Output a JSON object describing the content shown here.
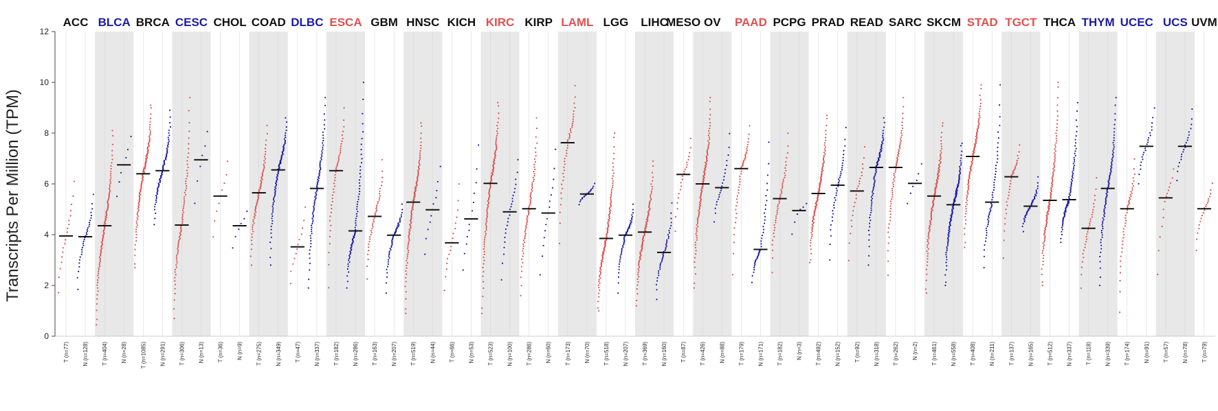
{
  "chart_data": {
    "type": "scatter",
    "ylabel": "Transcripts Per Million (TPM)",
    "ylim": [
      0,
      12
    ],
    "yticks": [
      0,
      2,
      4,
      6,
      8,
      10,
      12
    ],
    "colors": {
      "tumor": "#d9534f",
      "normal": "#1a1aa8",
      "up": "#e0504e",
      "down": "#1a1aa8",
      "neutral": "#111111",
      "median": "#111111",
      "band": "#e8e8e8"
    },
    "cancers": [
      {
        "name": "ACC",
        "status": "neutral",
        "groups": [
          {
            "label": "T (n=77)",
            "type": "tumor",
            "median": 3.95,
            "min": 1.3,
            "max": 6.5
          },
          {
            "label": "N (n=128)",
            "type": "normal",
            "median": 3.92,
            "min": 1.7,
            "max": 5.7
          }
        ]
      },
      {
        "name": "BLCA",
        "status": "down",
        "groups": [
          {
            "label": "T (n=404)",
            "type": "tumor",
            "median": 4.35,
            "min": 0.45,
            "max": 8.1
          },
          {
            "label": "N (n=28)",
            "type": "normal",
            "median": 6.75,
            "min": 4.8,
            "max": 8.5
          }
        ]
      },
      {
        "name": "BRCA",
        "status": "neutral",
        "groups": [
          {
            "label": "T (n=1085)",
            "type": "tumor",
            "median": 6.4,
            "min": 2.7,
            "max": 9.1
          },
          {
            "label": "N (n=291)",
            "type": "normal",
            "median": 6.52,
            "min": 4.4,
            "max": 8.9
          }
        ]
      },
      {
        "name": "CESC",
        "status": "down",
        "groups": [
          {
            "label": "T (n=306)",
            "type": "tumor",
            "median": 4.38,
            "min": 0.7,
            "max": 9.4
          },
          {
            "label": "N (n=13)",
            "type": "normal",
            "median": 6.95,
            "min": 4.1,
            "max": 8.8
          }
        ]
      },
      {
        "name": "CHOL",
        "status": "neutral",
        "groups": [
          {
            "label": "T (n=36)",
            "type": "tumor",
            "median": 5.52,
            "min": 3.2,
            "max": 7.5
          },
          {
            "label": "N (n=9)",
            "type": "normal",
            "median": 4.35,
            "min": 2.9,
            "max": 5.3
          }
        ]
      },
      {
        "name": "COAD",
        "status": "neutral",
        "groups": [
          {
            "label": "T (n=275)",
            "type": "tumor",
            "median": 5.65,
            "min": 2.8,
            "max": 8.3
          },
          {
            "label": "N (n=349)",
            "type": "normal",
            "median": 6.55,
            "min": 2.8,
            "max": 8.6
          }
        ]
      },
      {
        "name": "DLBC",
        "status": "down",
        "groups": [
          {
            "label": "T (n=47)",
            "type": "tumor",
            "median": 3.52,
            "min": 1.6,
            "max": 5.6
          },
          {
            "label": "N (n=337)",
            "type": "normal",
            "median": 5.82,
            "min": 1.9,
            "max": 9.4
          }
        ]
      },
      {
        "name": "ESCA",
        "status": "up",
        "groups": [
          {
            "label": "T (n=182)",
            "type": "tumor",
            "median": 6.52,
            "min": 1.9,
            "max": 9.0
          },
          {
            "label": "N (n=286)",
            "type": "normal",
            "median": 4.15,
            "min": 1.9,
            "max": 10.0
          }
        ]
      },
      {
        "name": "GBM",
        "status": "neutral",
        "groups": [
          {
            "label": "T (n=163)",
            "type": "tumor",
            "median": 4.72,
            "min": 2.2,
            "max": 7.0
          },
          {
            "label": "N (n=207)",
            "type": "normal",
            "median": 3.98,
            "min": 1.7,
            "max": 5.2
          }
        ]
      },
      {
        "name": "HNSC",
        "status": "neutral",
        "groups": [
          {
            "label": "T (n=519)",
            "type": "tumor",
            "median": 5.28,
            "min": 0.9,
            "max": 8.4
          },
          {
            "label": "N (n=44)",
            "type": "normal",
            "median": 4.98,
            "min": 2.6,
            "max": 7.3
          }
        ]
      },
      {
        "name": "KICH",
        "status": "neutral",
        "groups": [
          {
            "label": "T (n=66)",
            "type": "tumor",
            "median": 3.68,
            "min": 1.4,
            "max": 6.5
          },
          {
            "label": "N (n=53)",
            "type": "normal",
            "median": 4.62,
            "min": 2.0,
            "max": 8.4
          }
        ]
      },
      {
        "name": "KIRC",
        "status": "up",
        "groups": [
          {
            "label": "T (n=523)",
            "type": "tumor",
            "median": 6.02,
            "min": 0.9,
            "max": 9.2
          },
          {
            "label": "N (n=100)",
            "type": "normal",
            "median": 4.9,
            "min": 1.9,
            "max": 7.2
          }
        ]
      },
      {
        "name": "KIRP",
        "status": "neutral",
        "groups": [
          {
            "label": "T (n=286)",
            "type": "tumor",
            "median": 5.02,
            "min": 1.6,
            "max": 8.6
          },
          {
            "label": "N (n=60)",
            "type": "normal",
            "median": 4.85,
            "min": 1.8,
            "max": 8.0
          }
        ]
      },
      {
        "name": "LAML",
        "status": "up",
        "groups": [
          {
            "label": "T (n=173)",
            "type": "tumor",
            "median": 7.62,
            "min": 3.6,
            "max": 9.9
          },
          {
            "label": "N (n=70)",
            "type": "normal",
            "median": 5.6,
            "min": 5.1,
            "max": 6.1
          }
        ]
      },
      {
        "name": "LGG",
        "status": "neutral",
        "groups": [
          {
            "label": "T (n=518)",
            "type": "tumor",
            "median": 3.85,
            "min": 1.0,
            "max": 8.0
          },
          {
            "label": "N (n=207)",
            "type": "normal",
            "median": 3.98,
            "min": 1.7,
            "max": 5.2
          }
        ]
      },
      {
        "name": "LIHC",
        "status": "neutral",
        "groups": [
          {
            "label": "T (n=369)",
            "type": "tumor",
            "median": 4.1,
            "min": 1.2,
            "max": 6.9
          },
          {
            "label": "N (n=160)",
            "type": "normal",
            "median": 3.3,
            "min": 1.4,
            "max": 5.3
          }
        ]
      },
      {
        "name": "MESO",
        "status": "neutral",
        "groups": [
          {
            "label": "T (n=87)",
            "type": "tumor",
            "median": 6.37,
            "min": 3.8,
            "max": 8.0
          }
        ]
      },
      {
        "name": "OV",
        "status": "neutral",
        "groups": [
          {
            "label": "T (n=426)",
            "type": "tumor",
            "median": 6.0,
            "min": 1.9,
            "max": 9.4
          },
          {
            "label": "N (n=88)",
            "type": "normal",
            "median": 5.85,
            "min": 4.3,
            "max": 8.3
          }
        ]
      },
      {
        "name": "PAAD",
        "status": "up",
        "groups": [
          {
            "label": "T (n=179)",
            "type": "tumor",
            "median": 6.6,
            "min": 2.4,
            "max": 8.3
          },
          {
            "label": "N (n=171)",
            "type": "normal",
            "median": 3.42,
            "min": 2.1,
            "max": 7.7
          }
        ]
      },
      {
        "name": "PCPG",
        "status": "neutral",
        "groups": [
          {
            "label": "T (n=182)",
            "type": "tumor",
            "median": 5.42,
            "min": 2.5,
            "max": 8.0
          },
          {
            "label": "N (n=3)",
            "type": "normal",
            "median": 4.95,
            "min": 3.4,
            "max": 5.3
          }
        ]
      },
      {
        "name": "PRAD",
        "status": "neutral",
        "groups": [
          {
            "label": "T (n=492)",
            "type": "tumor",
            "median": 5.62,
            "min": 2.9,
            "max": 8.7
          },
          {
            "label": "N (n=152)",
            "type": "normal",
            "median": 5.95,
            "min": 2.9,
            "max": 8.3
          }
        ]
      },
      {
        "name": "READ",
        "status": "neutral",
        "groups": [
          {
            "label": "T (n=92)",
            "type": "tumor",
            "median": 5.72,
            "min": 2.6,
            "max": 7.7
          },
          {
            "label": "N (n=318)",
            "type": "normal",
            "median": 6.65,
            "min": 2.8,
            "max": 8.6
          }
        ]
      },
      {
        "name": "SARC",
        "status": "neutral",
        "groups": [
          {
            "label": "T (n=262)",
            "type": "tumor",
            "median": 6.65,
            "min": 2.4,
            "max": 9.4
          },
          {
            "label": "N (n=2)",
            "type": "normal",
            "median": 6.02,
            "min": 4.7,
            "max": 7.3
          }
        ]
      },
      {
        "name": "SKCM",
        "status": "neutral",
        "groups": [
          {
            "label": "T (n=461)",
            "type": "tumor",
            "median": 5.52,
            "min": 1.7,
            "max": 8.4
          },
          {
            "label": "N (n=558)",
            "type": "normal",
            "median": 5.18,
            "min": 2.0,
            "max": 7.6
          }
        ]
      },
      {
        "name": "STAD",
        "status": "up",
        "groups": [
          {
            "label": "T (n=408)",
            "type": "tumor",
            "median": 7.08,
            "min": 3.5,
            "max": 9.9
          },
          {
            "label": "N (n=211)",
            "type": "normal",
            "median": 5.28,
            "min": 2.7,
            "max": 9.9
          }
        ]
      },
      {
        "name": "TGCT",
        "status": "up",
        "groups": [
          {
            "label": "T (n=137)",
            "type": "tumor",
            "median": 6.28,
            "min": 2.9,
            "max": 7.6
          },
          {
            "label": "N (n=165)",
            "type": "normal",
            "median": 5.12,
            "min": 4.1,
            "max": 6.3
          }
        ]
      },
      {
        "name": "THCA",
        "status": "neutral",
        "groups": [
          {
            "label": "T (n=512)",
            "type": "tumor",
            "median": 5.35,
            "min": 2.0,
            "max": 10.0
          },
          {
            "label": "N (n=337)",
            "type": "normal",
            "median": 5.38,
            "min": 3.7,
            "max": 9.2
          }
        ]
      },
      {
        "name": "THYM",
        "status": "down",
        "groups": [
          {
            "label": "T (n=118)",
            "type": "tumor",
            "median": 4.25,
            "min": 1.7,
            "max": 6.4
          },
          {
            "label": "N (n=339)",
            "type": "normal",
            "median": 5.82,
            "min": 2.0,
            "max": 9.4
          }
        ]
      },
      {
        "name": "UCEC",
        "status": "down",
        "groups": [
          {
            "label": "T (n=174)",
            "type": "tumor",
            "median": 5.02,
            "min": 0.9,
            "max": 7.0
          },
          {
            "label": "N (n=91)",
            "type": "normal",
            "median": 7.48,
            "min": 5.8,
            "max": 9.2
          }
        ]
      },
      {
        "name": "UCS",
        "status": "down",
        "groups": [
          {
            "label": "T (n=57)",
            "type": "tumor",
            "median": 5.45,
            "min": 1.6,
            "max": 6.9
          },
          {
            "label": "N (n=78)",
            "type": "normal",
            "median": 7.48,
            "min": 5.9,
            "max": 9.2
          }
        ]
      },
      {
        "name": "UVM",
        "status": "neutral",
        "groups": [
          {
            "label": "T (n=79)",
            "type": "tumor",
            "median": 5.02,
            "min": 3.1,
            "max": 6.2
          }
        ]
      }
    ]
  }
}
